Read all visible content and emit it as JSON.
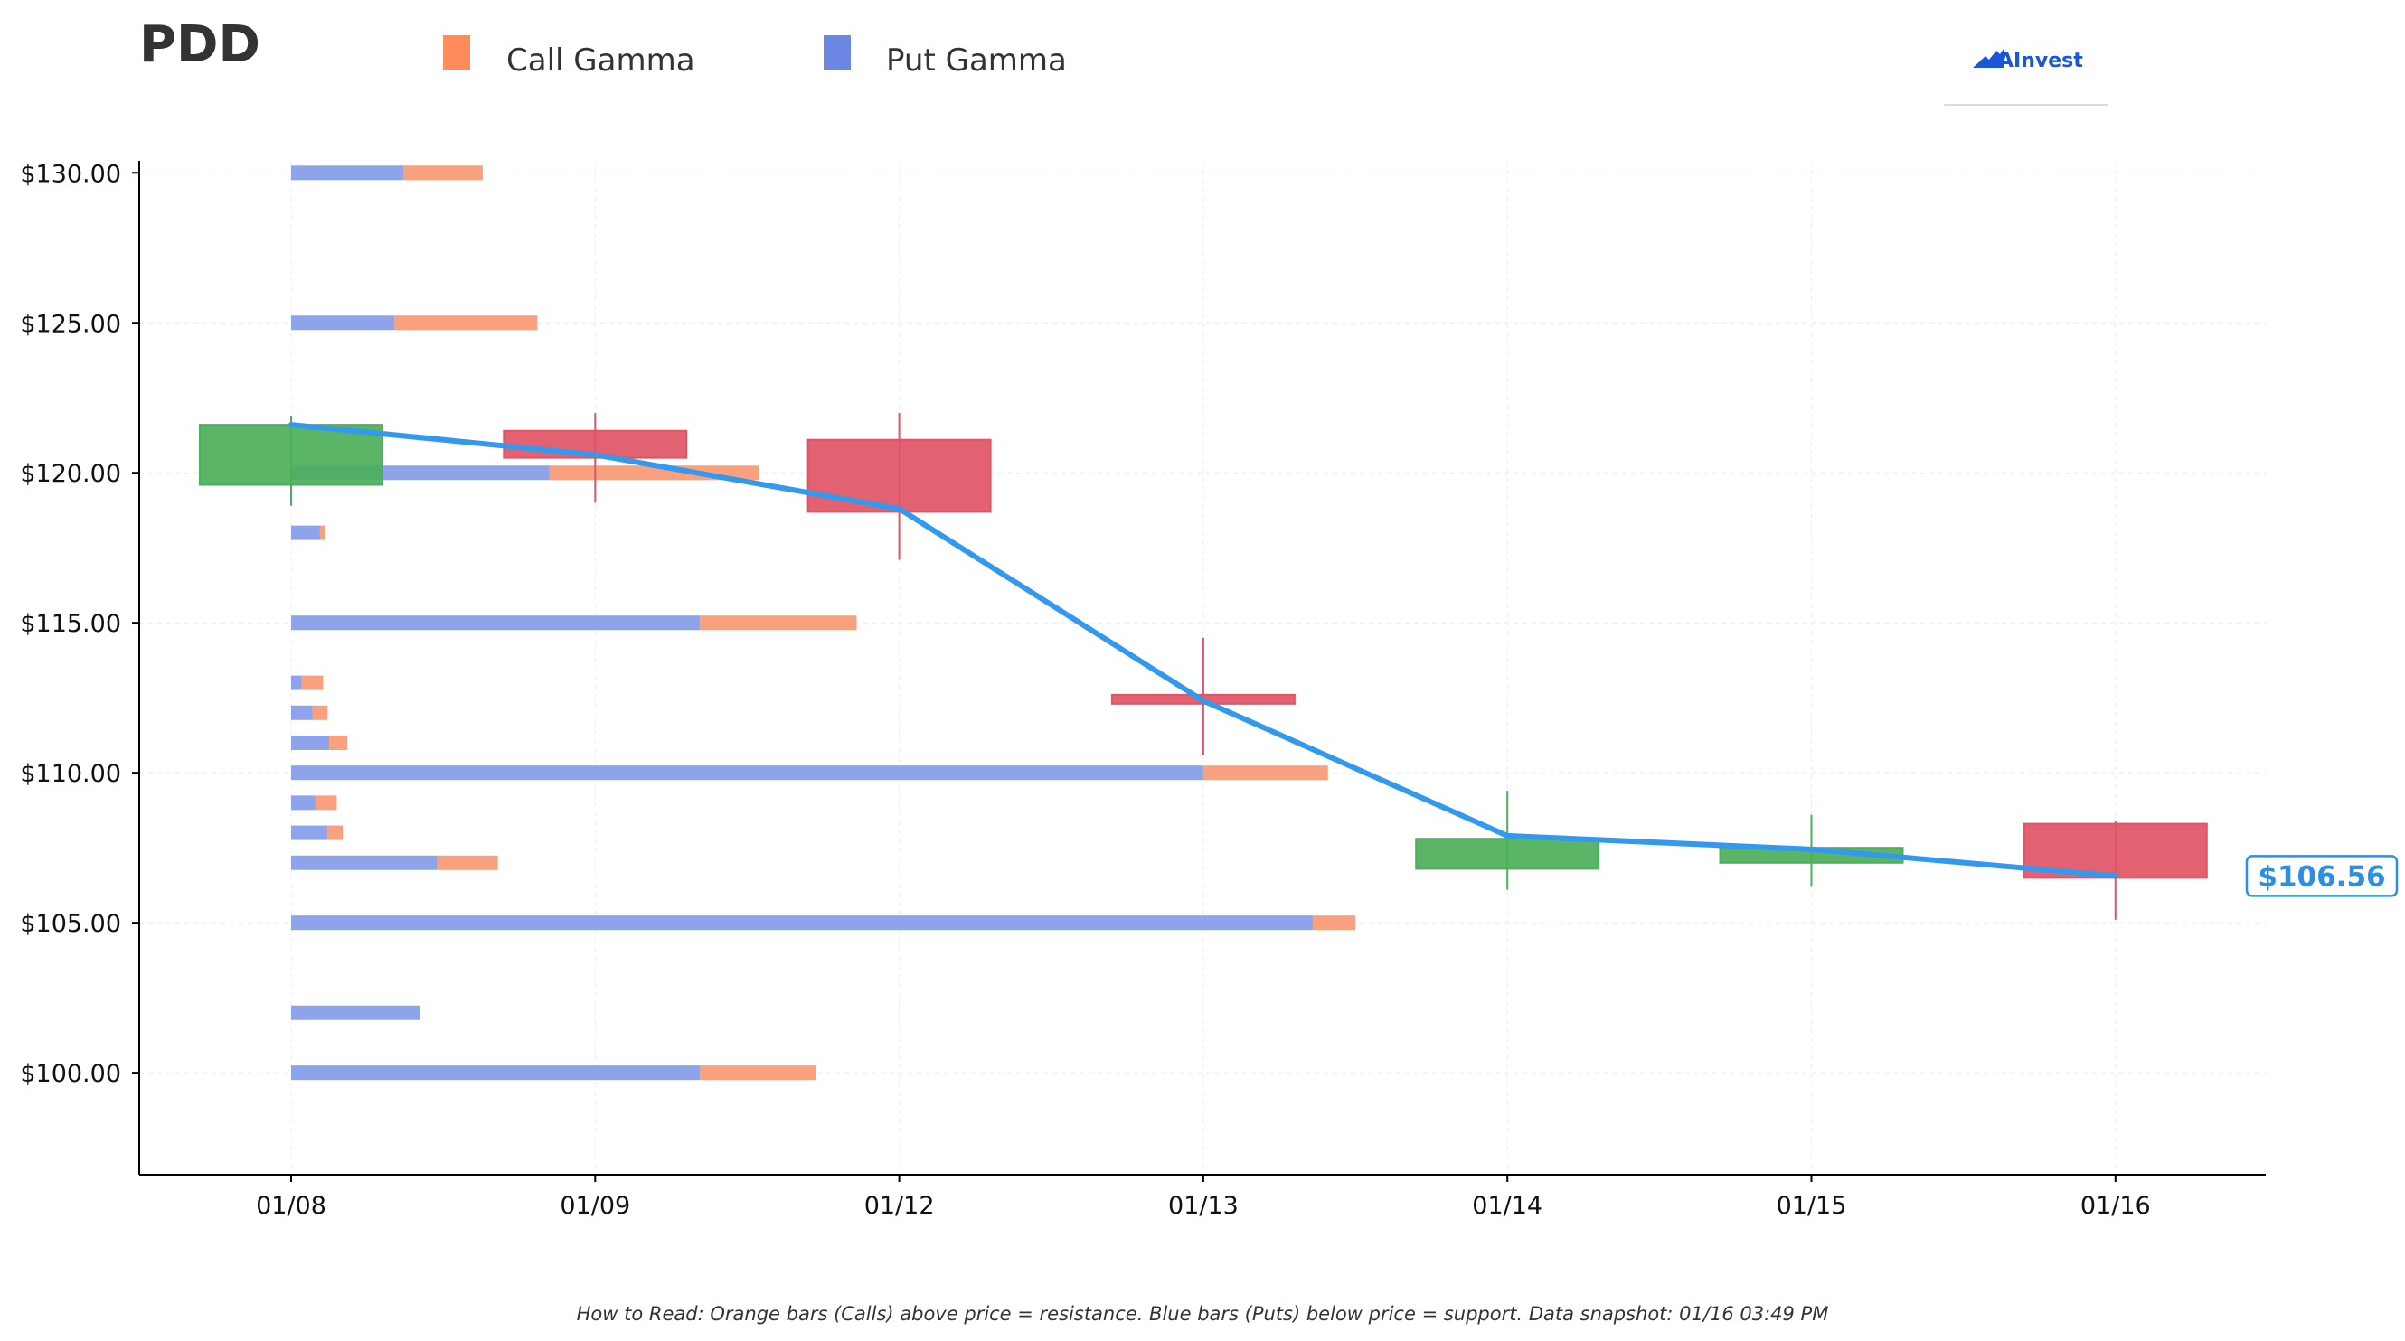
{
  "header": {
    "title": "PDD",
    "brand": "AInvest"
  },
  "legend": {
    "call_label": "Call Gamma",
    "put_label": "Put Gamma",
    "placement": "top"
  },
  "footnote": "How to Read: Orange bars (Calls) above price = resistance. Blue bars (Puts) below price = support. Data snapshot: 01/16 03:49 PM",
  "colors": {
    "call": "#f9a07e",
    "call_legend": "#ff8c5a",
    "put": "#8ea4ea",
    "put_legend": "#6b87e3",
    "up": "#4caf5a",
    "down": "#e05565",
    "price_line": "#3399ee",
    "brand": "#1a56db"
  },
  "chart_data": {
    "type": "candlestick+horizontal-bar",
    "x_categories": [
      "01/08",
      "01/09",
      "01/12",
      "01/13",
      "01/14",
      "01/15",
      "01/16"
    ],
    "y_tick_values": [
      100,
      105,
      110,
      115,
      120,
      125,
      130
    ],
    "y_tick_labels": [
      "$100.00",
      "$105.00",
      "$110.00",
      "$115.00",
      "$120.00",
      "$125.00",
      "$130.00"
    ],
    "ylim": [
      96.6,
      130.4
    ],
    "grid": true,
    "candles": [
      {
        "date": "01/08",
        "open": 119.6,
        "close": 121.6,
        "high": 121.9,
        "low": 118.9
      },
      {
        "date": "01/09",
        "open": 121.4,
        "close": 120.5,
        "high": 122.0,
        "low": 119.0
      },
      {
        "date": "01/12",
        "open": 121.1,
        "close": 118.7,
        "high": 122.0,
        "low": 117.1
      },
      {
        "date": "01/13",
        "open": 112.6,
        "close": 112.3,
        "high": 114.5,
        "low": 110.6
      },
      {
        "date": "01/14",
        "open": 106.8,
        "close": 107.8,
        "high": 109.4,
        "low": 106.1
      },
      {
        "date": "01/15",
        "open": 107.0,
        "close": 107.5,
        "high": 108.6,
        "low": 106.2
      },
      {
        "date": "01/16",
        "open": 108.3,
        "close": 106.5,
        "high": 108.4,
        "low": 105.1
      }
    ],
    "price_line": {
      "name": "",
      "x": [
        "01/08",
        "01/09",
        "01/12",
        "01/13",
        "01/14",
        "01/15",
        "01/16"
      ],
      "values": [
        121.6,
        120.6,
        118.8,
        112.4,
        107.9,
        107.45,
        106.56
      ]
    },
    "last_price_label": "$106.56",
    "gamma_bars": [
      {
        "strike": 130,
        "put": 0.37,
        "call": 0.26
      },
      {
        "strike": 125,
        "put": 0.34,
        "call": 0.47
      },
      {
        "strike": 120,
        "put": 0.85,
        "call": 0.69
      },
      {
        "strike": 118,
        "put": 0.095,
        "call": 0.015
      },
      {
        "strike": 115,
        "put": 1.345,
        "call": 0.515
      },
      {
        "strike": 113,
        "put": 0.035,
        "call": 0.07
      },
      {
        "strike": 112,
        "put": 0.07,
        "call": 0.05
      },
      {
        "strike": 111,
        "put": 0.125,
        "call": 0.06
      },
      {
        "strike": 110,
        "put": 3.0,
        "call": 0.41
      },
      {
        "strike": 109,
        "put": 0.08,
        "call": 0.07
      },
      {
        "strike": 108,
        "put": 0.12,
        "call": 0.05
      },
      {
        "strike": 107,
        "put": 0.48,
        "call": 0.2
      },
      {
        "strike": 105,
        "put": 3.36,
        "call": 0.14
      },
      {
        "strike": 102,
        "put": 0.425,
        "call": 0.0
      },
      {
        "strike": 100,
        "put": 1.345,
        "call": 0.38
      }
    ]
  }
}
